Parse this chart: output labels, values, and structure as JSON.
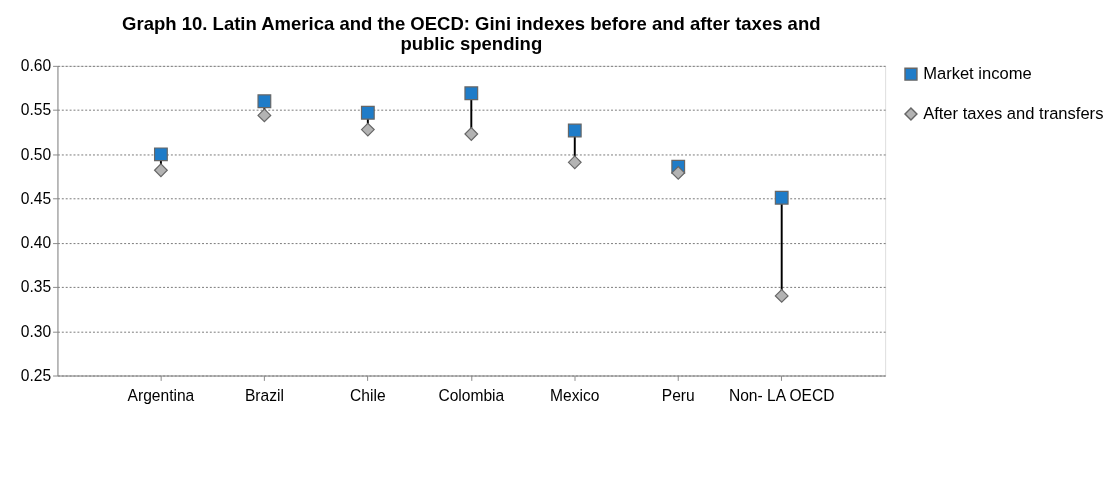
{
  "chart_data": {
    "type": "scatter",
    "title": "Graph 10. Latin America and the OECD: Gini indexes before and after taxes and public spending",
    "categories": [
      "Argentina",
      "Brazil",
      "Chile",
      "Colombia",
      "Mexico",
      "Peru",
      "Non- LA OECD"
    ],
    "series": [
      {
        "name": "Market income",
        "color": "#1f7cc8",
        "marker": "square",
        "values": [
          0.5,
          0.56,
          0.547,
          0.569,
          0.527,
          0.486,
          0.451
        ]
      },
      {
        "name": "After taxes and transfers",
        "color": "#b3b3b3",
        "marker": "diamond",
        "values": [
          0.482,
          0.544,
          0.528,
          0.523,
          0.491,
          0.479,
          0.34
        ]
      }
    ],
    "ylim": [
      0.25,
      0.6
    ],
    "yticks": [
      {
        "value": 0.25,
        "label": "0.25"
      },
      {
        "value": 0.3,
        "label": "0.30"
      },
      {
        "value": 0.35,
        "label": "0.35"
      },
      {
        "value": 0.4,
        "label": "0.40"
      },
      {
        "value": 0.45,
        "label": "0.45"
      },
      {
        "value": 0.5,
        "label": "0.50"
      },
      {
        "value": 0.55,
        "label": "0.55"
      },
      {
        "value": 0.6,
        "label": "0.60"
      }
    ],
    "grid": "y",
    "legend": "right"
  }
}
